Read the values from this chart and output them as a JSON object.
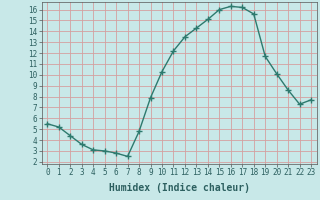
{
  "xlabel": "Humidex (Indice chaleur)",
  "x": [
    0,
    1,
    2,
    3,
    4,
    5,
    6,
    7,
    8,
    9,
    10,
    11,
    12,
    13,
    14,
    15,
    16,
    17,
    18,
    19,
    20,
    21,
    22,
    23
  ],
  "y": [
    5.5,
    5.2,
    4.4,
    3.6,
    3.1,
    3.0,
    2.8,
    2.5,
    4.8,
    7.9,
    10.3,
    12.2,
    13.5,
    14.3,
    15.1,
    16.0,
    16.3,
    16.2,
    15.6,
    11.7,
    10.1,
    8.6,
    7.3,
    7.7
  ],
  "line_color": "#2d7a6e",
  "marker": "+",
  "marker_size": 4,
  "bg_color": "#c8e8e8",
  "grid_color": "#d4a0a0",
  "xlim": [
    -0.5,
    23.5
  ],
  "ylim": [
    1.8,
    16.7
  ],
  "yticks": [
    2,
    3,
    4,
    5,
    6,
    7,
    8,
    9,
    10,
    11,
    12,
    13,
    14,
    15,
    16
  ],
  "xticks": [
    0,
    1,
    2,
    3,
    4,
    5,
    6,
    7,
    8,
    9,
    10,
    11,
    12,
    13,
    14,
    15,
    16,
    17,
    18,
    19,
    20,
    21,
    22,
    23
  ],
  "xlabel_fontsize": 7,
  "tick_fontsize": 5.5,
  "line_width": 1.0,
  "tick_color": "#2d6060",
  "spine_color": "#555555"
}
